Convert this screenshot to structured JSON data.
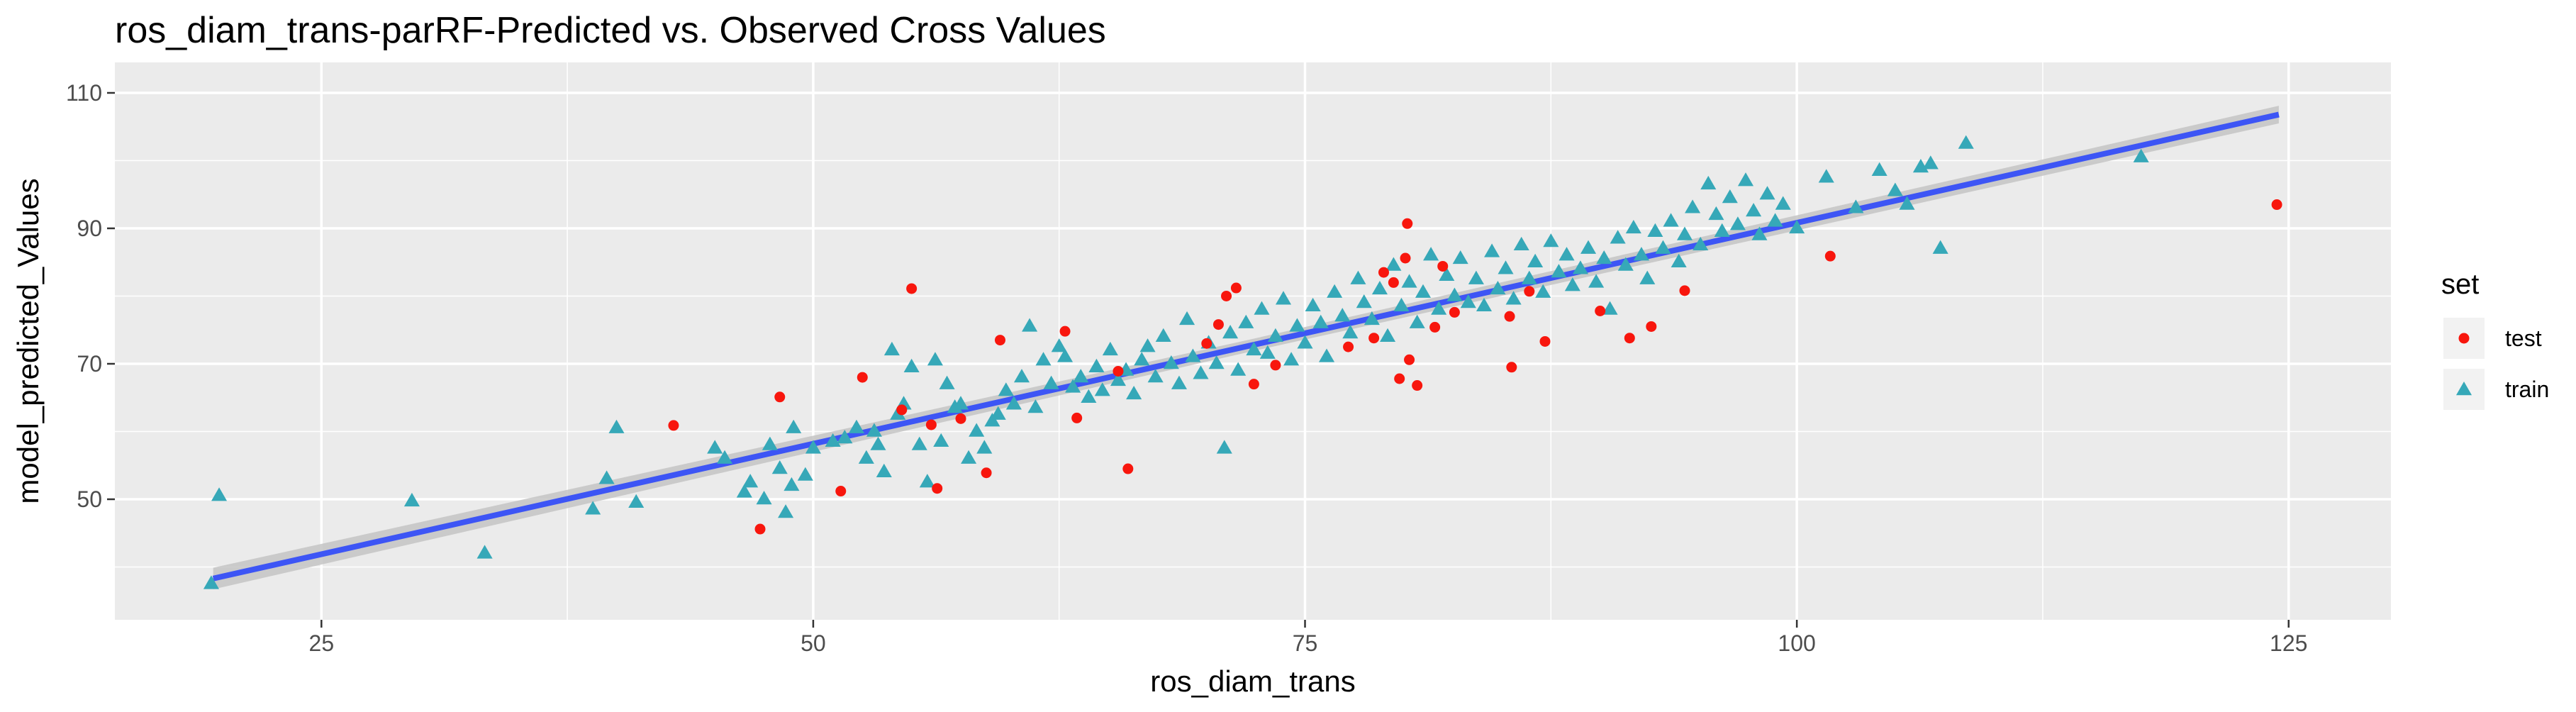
{
  "chart_data": {
    "type": "scatter",
    "title": "ros_diam_trans-parRF-Predicted vs. Observed Cross Values",
    "xlabel": "ros_diam_trans",
    "ylabel": "model_predicted_Values",
    "xlim": [
      14.5,
      130.2
    ],
    "ylim": [
      32.2,
      114.5
    ],
    "x_ticks": [
      25,
      50,
      75,
      100,
      125
    ],
    "y_ticks": [
      50,
      70,
      90,
      110
    ],
    "x_minor": [
      37.5,
      62.5,
      87.5,
      112.5
    ],
    "y_minor": [
      40,
      60,
      80,
      100
    ],
    "grid": true,
    "panel_color": "#ebebeb",
    "legend": {
      "title": "set",
      "position": "right",
      "entries": [
        {
          "label": "test",
          "color": "#f8160d",
          "shape": "circle"
        },
        {
          "label": "train",
          "color": "#36a8b8",
          "shape": "triangle"
        }
      ]
    },
    "fit": {
      "type": "lm",
      "color": "#3d55f5",
      "band_color": "#c4c4c4",
      "line": [
        [
          19.5,
          38.3
        ],
        [
          124.5,
          106.8
        ]
      ],
      "band_halfwidth": [
        1.6,
        0.9,
        1.3
      ]
    },
    "series": [
      {
        "name": "test",
        "color": "#f8160d",
        "shape": "circle",
        "points": [
          [
            42.9,
            60.9
          ],
          [
            47.3,
            45.6
          ],
          [
            48.3,
            65.1
          ],
          [
            51.4,
            51.2
          ],
          [
            52.5,
            68.0
          ],
          [
            54.5,
            63.2
          ],
          [
            55.0,
            81.1
          ],
          [
            56.0,
            61.0
          ],
          [
            56.3,
            51.6
          ],
          [
            57.5,
            61.9
          ],
          [
            58.8,
            53.9
          ],
          [
            59.5,
            73.5
          ],
          [
            62.8,
            74.8
          ],
          [
            63.4,
            62.0
          ],
          [
            65.5,
            68.9
          ],
          [
            66.0,
            54.5
          ],
          [
            70.0,
            73.0
          ],
          [
            70.6,
            75.8
          ],
          [
            71.0,
            80.0
          ],
          [
            71.5,
            81.2
          ],
          [
            72.4,
            67.0
          ],
          [
            73.5,
            69.8
          ],
          [
            77.2,
            72.5
          ],
          [
            78.5,
            73.8
          ],
          [
            79.0,
            83.5
          ],
          [
            79.5,
            82.0
          ],
          [
            79.8,
            67.8
          ],
          [
            80.1,
            85.6
          ],
          [
            80.2,
            90.7
          ],
          [
            80.3,
            70.6
          ],
          [
            80.7,
            66.8
          ],
          [
            81.6,
            75.4
          ],
          [
            82.0,
            84.4
          ],
          [
            82.6,
            77.6
          ],
          [
            85.4,
            77.0
          ],
          [
            85.5,
            69.5
          ],
          [
            86.4,
            80.7
          ],
          [
            87.2,
            73.3
          ],
          [
            90.0,
            77.8
          ],
          [
            91.5,
            73.8
          ],
          [
            92.6,
            75.5
          ],
          [
            94.3,
            80.8
          ],
          [
            101.7,
            85.9
          ],
          [
            124.4,
            93.5
          ]
        ]
      },
      {
        "name": "train",
        "color": "#36a8b8",
        "shape": "triangle",
        "points": [
          [
            19.4,
            37.5
          ],
          [
            19.8,
            50.5
          ],
          [
            29.6,
            49.7
          ],
          [
            33.3,
            42.0
          ],
          [
            38.8,
            48.5
          ],
          [
            39.5,
            53.0
          ],
          [
            40.0,
            60.5
          ],
          [
            41.0,
            49.5
          ],
          [
            45.0,
            57.5
          ],
          [
            45.5,
            56.0
          ],
          [
            46.5,
            51.0
          ],
          [
            46.8,
            52.5
          ],
          [
            47.5,
            50.0
          ],
          [
            47.8,
            58.0
          ],
          [
            48.3,
            54.5
          ],
          [
            48.6,
            48.0
          ],
          [
            48.9,
            52.0
          ],
          [
            49.0,
            60.5
          ],
          [
            49.6,
            53.5
          ],
          [
            50.0,
            57.5
          ],
          [
            51.0,
            58.5
          ],
          [
            51.6,
            59.0
          ],
          [
            52.2,
            60.5
          ],
          [
            52.7,
            56.0
          ],
          [
            53.1,
            60.0
          ],
          [
            53.3,
            58.0
          ],
          [
            53.6,
            54.0
          ],
          [
            54.0,
            72.0
          ],
          [
            54.3,
            62.5
          ],
          [
            54.6,
            64.0
          ],
          [
            55.0,
            69.5
          ],
          [
            55.4,
            58.0
          ],
          [
            55.8,
            52.5
          ],
          [
            56.2,
            70.5
          ],
          [
            56.5,
            58.5
          ],
          [
            56.8,
            67.0
          ],
          [
            57.2,
            63.5
          ],
          [
            57.5,
            64.0
          ],
          [
            57.9,
            56.0
          ],
          [
            58.3,
            60.0
          ],
          [
            58.7,
            57.5
          ],
          [
            59.1,
            61.5
          ],
          [
            59.4,
            62.5
          ],
          [
            59.8,
            66.0
          ],
          [
            60.2,
            64.0
          ],
          [
            60.6,
            68.0
          ],
          [
            61.0,
            75.5
          ],
          [
            61.3,
            63.5
          ],
          [
            61.7,
            70.5
          ],
          [
            62.1,
            67.0
          ],
          [
            62.5,
            72.5
          ],
          [
            62.8,
            71.0
          ],
          [
            63.2,
            66.5
          ],
          [
            63.6,
            68.0
          ],
          [
            64.0,
            65.0
          ],
          [
            64.4,
            69.5
          ],
          [
            64.7,
            66.0
          ],
          [
            65.1,
            72.0
          ],
          [
            65.5,
            67.5
          ],
          [
            65.9,
            69.0
          ],
          [
            66.3,
            65.5
          ],
          [
            66.7,
            70.5
          ],
          [
            67.0,
            72.5
          ],
          [
            67.4,
            68.0
          ],
          [
            67.8,
            74.0
          ],
          [
            68.2,
            70.0
          ],
          [
            68.6,
            67.0
          ],
          [
            69.0,
            76.5
          ],
          [
            69.3,
            71.0
          ],
          [
            69.7,
            68.5
          ],
          [
            70.1,
            73.0
          ],
          [
            70.5,
            70.0
          ],
          [
            70.9,
            57.5
          ],
          [
            71.2,
            74.5
          ],
          [
            71.6,
            69.0
          ],
          [
            72.0,
            76.0
          ],
          [
            72.4,
            72.0
          ],
          [
            72.8,
            78.0
          ],
          [
            73.1,
            71.5
          ],
          [
            73.5,
            74.0
          ],
          [
            73.9,
            79.5
          ],
          [
            74.3,
            70.5
          ],
          [
            74.6,
            75.5
          ],
          [
            75.0,
            73.0
          ],
          [
            75.4,
            78.5
          ],
          [
            75.8,
            76.0
          ],
          [
            76.1,
            71.0
          ],
          [
            76.5,
            80.5
          ],
          [
            76.9,
            77.0
          ],
          [
            77.3,
            74.5
          ],
          [
            77.7,
            82.5
          ],
          [
            78.0,
            79.0
          ],
          [
            78.4,
            76.5
          ],
          [
            78.8,
            81.0
          ],
          [
            79.2,
            74.0
          ],
          [
            79.5,
            84.5
          ],
          [
            79.9,
            78.5
          ],
          [
            80.3,
            82.0
          ],
          [
            80.7,
            76.0
          ],
          [
            81.0,
            80.5
          ],
          [
            81.4,
            86.0
          ],
          [
            81.8,
            78.0
          ],
          [
            82.2,
            83.0
          ],
          [
            82.6,
            80.0
          ],
          [
            82.9,
            85.5
          ],
          [
            83.3,
            79.0
          ],
          [
            83.7,
            82.5
          ],
          [
            84.1,
            78.5
          ],
          [
            84.5,
            86.5
          ],
          [
            84.8,
            81.0
          ],
          [
            85.2,
            84.0
          ],
          [
            85.6,
            79.5
          ],
          [
            86.0,
            87.5
          ],
          [
            86.4,
            82.5
          ],
          [
            86.7,
            85.0
          ],
          [
            87.1,
            80.5
          ],
          [
            87.5,
            88.0
          ],
          [
            87.9,
            83.5
          ],
          [
            88.3,
            86.0
          ],
          [
            88.6,
            81.5
          ],
          [
            89.0,
            84.0
          ],
          [
            89.4,
            87.0
          ],
          [
            89.8,
            82.0
          ],
          [
            90.2,
            85.5
          ],
          [
            90.5,
            78.0
          ],
          [
            90.9,
            88.5
          ],
          [
            91.3,
            84.5
          ],
          [
            91.7,
            90.0
          ],
          [
            92.1,
            86.0
          ],
          [
            92.4,
            82.5
          ],
          [
            92.8,
            89.5
          ],
          [
            93.2,
            87.0
          ],
          [
            93.6,
            91.0
          ],
          [
            94.0,
            85.0
          ],
          [
            94.3,
            89.0
          ],
          [
            94.7,
            93.0
          ],
          [
            95.1,
            87.5
          ],
          [
            95.5,
            96.5
          ],
          [
            95.9,
            92.0
          ],
          [
            96.2,
            89.5
          ],
          [
            96.6,
            94.5
          ],
          [
            97.0,
            90.5
          ],
          [
            97.4,
            97.0
          ],
          [
            97.8,
            92.5
          ],
          [
            98.1,
            89.0
          ],
          [
            98.5,
            95.0
          ],
          [
            98.9,
            91.0
          ],
          [
            99.3,
            93.5
          ],
          [
            100.0,
            90.0
          ],
          [
            101.5,
            97.5
          ],
          [
            103.0,
            93.0
          ],
          [
            104.2,
            98.5
          ],
          [
            105.0,
            95.5
          ],
          [
            105.6,
            93.5
          ],
          [
            106.3,
            99.0
          ],
          [
            106.8,
            99.5
          ],
          [
            107.3,
            87.0
          ],
          [
            108.6,
            102.5
          ],
          [
            117.5,
            100.5
          ]
        ]
      }
    ]
  }
}
